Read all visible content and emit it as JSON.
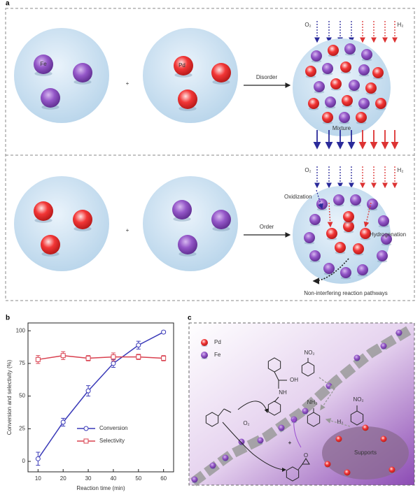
{
  "panel_a": {
    "label": "a",
    "top": {
      "fe_label": "Fe",
      "pd_label": "Pd",
      "plus": "+",
      "arrow_label": "Disorder",
      "o2": "O₂",
      "h2": "H₂",
      "mixture": "Mixture"
    },
    "bottom": {
      "plus": "+",
      "arrow_label": "Order",
      "o2": "O₂",
      "h2": "H₂",
      "oxidization": "Oxidization",
      "hydrogenation": "Hydrogenation",
      "caption": "Non-interfering reaction pathways"
    }
  },
  "chart_data": {
    "type": "line",
    "label": "b",
    "xlabel": "Reaction time (min)",
    "ylabel": "Conversion and selectivity (%)",
    "x": [
      10,
      20,
      30,
      40,
      50,
      60
    ],
    "series": [
      {
        "name": "Conversion",
        "color": "#3a3ab8",
        "marker": "circle",
        "values": [
          2,
          30,
          54,
          75,
          89,
          99
        ],
        "errors": [
          5,
          3,
          4,
          3,
          3,
          1
        ]
      },
      {
        "name": "Selectivity",
        "color": "#d9404f",
        "marker": "square",
        "values": [
          78,
          81,
          79,
          80,
          80,
          79
        ],
        "errors": [
          3,
          3,
          2,
          3,
          2,
          2
        ]
      }
    ],
    "xlim": [
      6,
      64
    ],
    "ylim": [
      -8,
      106
    ],
    "xticks": [
      10,
      20,
      30,
      40,
      50,
      60
    ],
    "yticks": [
      0,
      25,
      50,
      75,
      100
    ],
    "legend": "lower center"
  },
  "panel_c": {
    "label": "c",
    "pd": "Pd",
    "fe": "Fe",
    "oh": "OH",
    "nh": "NH",
    "no2_a": "NO₂",
    "no2_b": "NO₂",
    "o2": "O₂",
    "nh2": "NH₂",
    "h2": "H₂",
    "plus": "+",
    "o": "O",
    "supports": "Supports"
  }
}
